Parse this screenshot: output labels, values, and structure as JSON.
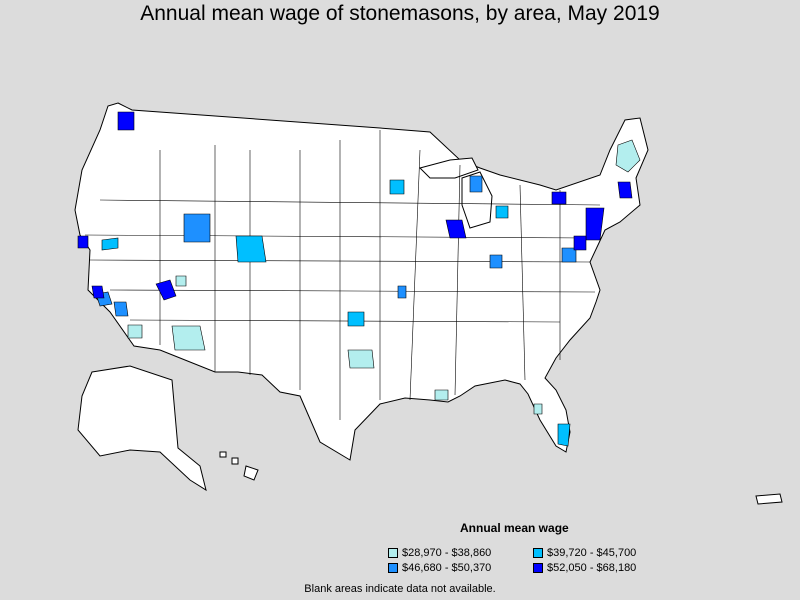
{
  "title": "Annual mean wage of stonemasons, by area, May 2019",
  "legend": {
    "title": "Annual mean wage",
    "items": [
      {
        "label": "$28,970 - $38,860",
        "color": "#b3eeee"
      },
      {
        "label": "$39,720 - $45,700",
        "color": "#00bfff"
      },
      {
        "label": "$46,680 - $50,370",
        "color": "#1e90ff"
      },
      {
        "label": "$52,050 - $68,180",
        "color": "#0000ff"
      }
    ]
  },
  "footnote": "Blank areas indicate data not available.",
  "colors": {
    "background": "#dcdcdc",
    "land": "#ffffff",
    "border": "#000000"
  }
}
